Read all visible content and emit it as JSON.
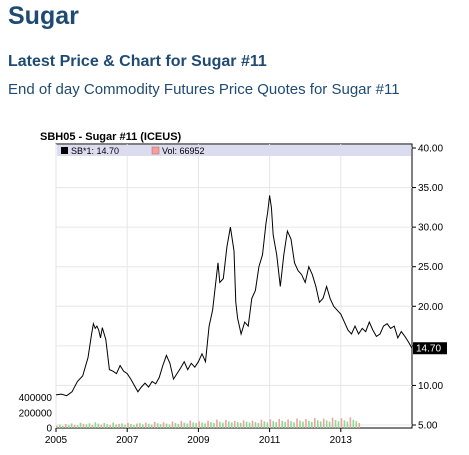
{
  "page": {
    "title": "Sugar",
    "subtitle": "Latest Price & Chart for Sugar #11",
    "description": "End of day Commodity Futures Price Quotes for Sugar #11"
  },
  "colors": {
    "heading": "#1f4b73",
    "price_line": "#000000",
    "last_price_tag": "#000000",
    "legend_band": "#dcdcf0",
    "grid": "#e6e6e6",
    "volume_bar_up": "#8fd88f",
    "volume_bar_down": "#f0a0a0"
  },
  "chart_data": {
    "type": "line",
    "title": "SBH05 - Sugar #11 (ICEUS)",
    "legend": [
      {
        "label": "SB*1: 14.70",
        "color": "#000000"
      },
      {
        "label": "Vol: 66952",
        "color": "#f0a0a0"
      }
    ],
    "legend_position": "top-left",
    "grid": true,
    "x_range": [
      2005.0,
      2015.0
    ],
    "x_ticks": [
      2005,
      2007,
      2009,
      2011,
      2013
    ],
    "x_tick_labels": [
      "2005",
      "2007",
      "2009",
      "2011",
      "2013"
    ],
    "price_axis": {
      "range": [
        5.0,
        40.0
      ],
      "ticks": [
        5,
        10,
        15,
        20,
        25,
        30,
        35,
        40
      ],
      "tick_labels": [
        "5.00",
        "10.00",
        "15.00",
        "20.00",
        "25.00",
        "30.00",
        "35.00",
        "40.00"
      ],
      "last_price_label": "14.70",
      "last_price": 14.7
    },
    "volume_axis": {
      "range": [
        0,
        500000
      ],
      "ticks": [
        0,
        200000,
        400000
      ],
      "tick_labels": [
        "0",
        "200000",
        "400000"
      ]
    },
    "price_series": {
      "name": "SB*1",
      "x": [
        2005.0,
        2005.15,
        2005.3,
        2005.45,
        2005.6,
        2005.75,
        2005.9,
        2006.0,
        2006.05,
        2006.1,
        2006.15,
        2006.2,
        2006.25,
        2006.3,
        2006.4,
        2006.5,
        2006.6,
        2006.7,
        2006.8,
        2006.9,
        2007.0,
        2007.1,
        2007.2,
        2007.3,
        2007.4,
        2007.5,
        2007.6,
        2007.7,
        2007.8,
        2007.9,
        2008.0,
        2008.1,
        2008.2,
        2008.3,
        2008.4,
        2008.5,
        2008.6,
        2008.7,
        2008.8,
        2008.9,
        2009.0,
        2009.1,
        2009.2,
        2009.3,
        2009.4,
        2009.5,
        2009.55,
        2009.6,
        2009.7,
        2009.8,
        2009.9,
        2010.0,
        2010.05,
        2010.1,
        2010.2,
        2010.3,
        2010.4,
        2010.5,
        2010.6,
        2010.7,
        2010.8,
        2010.9,
        2010.95,
        2011.0,
        2011.05,
        2011.1,
        2011.2,
        2011.3,
        2011.4,
        2011.5,
        2011.6,
        2011.7,
        2011.8,
        2011.9,
        2012.0,
        2012.1,
        2012.2,
        2012.3,
        2012.4,
        2012.5,
        2012.6,
        2012.7,
        2012.8,
        2012.9,
        2013.0,
        2013.1,
        2013.2,
        2013.3,
        2013.4,
        2013.5,
        2013.6,
        2013.7,
        2013.8,
        2013.9,
        2014.0,
        2014.1,
        2014.2,
        2014.3,
        2014.4,
        2014.5,
        2014.6,
        2014.7,
        2014.8,
        2014.9,
        2015.0
      ],
      "y": [
        8.8,
        8.9,
        8.7,
        9.2,
        10.5,
        11.2,
        13.5,
        16.5,
        17.8,
        17.2,
        17.5,
        17.0,
        16.0,
        17.3,
        15.8,
        12.0,
        11.8,
        11.5,
        12.5,
        11.8,
        11.5,
        10.8,
        10.0,
        9.2,
        9.8,
        10.3,
        9.8,
        10.5,
        10.2,
        11.0,
        12.5,
        13.8,
        12.8,
        10.8,
        11.5,
        12.2,
        13.0,
        12.0,
        12.8,
        12.3,
        13.0,
        14.0,
        13.0,
        17.5,
        19.5,
        23.5,
        25.5,
        23.0,
        23.5,
        27.5,
        30.0,
        27.0,
        20.5,
        18.5,
        16.5,
        18.0,
        17.5,
        21.0,
        22.0,
        25.0,
        26.5,
        30.5,
        32.0,
        34.0,
        32.5,
        29.0,
        26.5,
        22.5,
        26.5,
        29.5,
        28.5,
        25.5,
        24.5,
        24.0,
        23.0,
        25.0,
        24.0,
        22.5,
        20.5,
        21.0,
        22.5,
        21.0,
        20.0,
        19.5,
        19.0,
        18.0,
        17.0,
        16.5,
        17.5,
        16.5,
        17.2,
        16.8,
        18.0,
        17.0,
        16.2,
        16.5,
        17.5,
        17.8,
        17.2,
        17.5,
        16.0,
        16.8,
        16.2,
        15.5,
        14.7
      ]
    },
    "volume_series": {
      "name": "Vol",
      "description_values_approx": true,
      "x_start": 2005.0,
      "x_step": 0.0833,
      "values": [
        30000,
        45000,
        28000,
        52000,
        38000,
        60000,
        41000,
        35000,
        70000,
        55000,
        48000,
        62000,
        40000,
        75000,
        58000,
        44000,
        66000,
        50000,
        39000,
        72000,
        47000,
        55000,
        61000,
        43000,
        68000,
        52000,
        40000,
        59000,
        64000,
        48000,
        71000,
        56000,
        45000,
        80000,
        62000,
        50000,
        76000,
        58000,
        47000,
        85000,
        66000,
        54000,
        90000,
        70000,
        60000,
        98000,
        74000,
        65000,
        88000,
        72000,
        61000,
        95000,
        78000,
        66000,
        110000,
        82000,
        70000,
        105000,
        86000,
        74000,
        92000,
        80000,
        68000,
        100000,
        84000,
        72000,
        96000,
        79000,
        67000,
        108000,
        88000,
        75000,
        115000,
        90000,
        78000,
        120000,
        94000,
        80000,
        112000,
        91000,
        76000,
        125000,
        98000,
        83000,
        118000,
        95000,
        81000,
        130000,
        102000,
        86000,
        122000,
        99000,
        84000,
        135000,
        105000,
        88000,
        128000,
        100000,
        85000,
        140000,
        108000,
        90000,
        66952
      ]
    }
  }
}
